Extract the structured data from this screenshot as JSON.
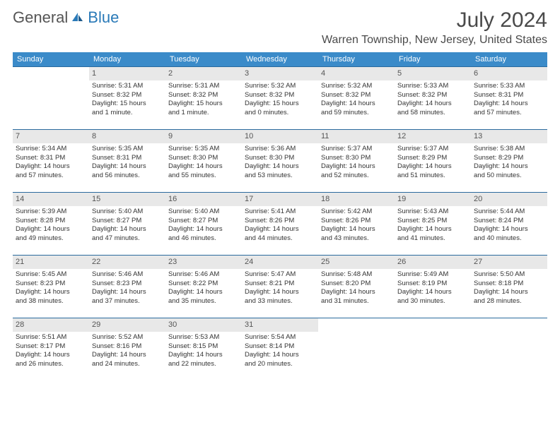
{
  "logo": {
    "text1": "General",
    "text2": "Blue"
  },
  "header": {
    "month": "July 2024",
    "location": "Warren Township, New Jersey, United States"
  },
  "colors": {
    "header_bg": "#3b8bc9",
    "header_text": "#ffffff",
    "daynum_bg": "#e8e8e8",
    "row_border": "#2a6a9e",
    "body_text": "#333333"
  },
  "dayNames": [
    "Sunday",
    "Monday",
    "Tuesday",
    "Wednesday",
    "Thursday",
    "Friday",
    "Saturday"
  ],
  "weeks": [
    [
      {
        "num": "",
        "lines": []
      },
      {
        "num": "1",
        "lines": [
          "Sunrise: 5:31 AM",
          "Sunset: 8:32 PM",
          "Daylight: 15 hours",
          "and 1 minute."
        ]
      },
      {
        "num": "2",
        "lines": [
          "Sunrise: 5:31 AM",
          "Sunset: 8:32 PM",
          "Daylight: 15 hours",
          "and 1 minute."
        ]
      },
      {
        "num": "3",
        "lines": [
          "Sunrise: 5:32 AM",
          "Sunset: 8:32 PM",
          "Daylight: 15 hours",
          "and 0 minutes."
        ]
      },
      {
        "num": "4",
        "lines": [
          "Sunrise: 5:32 AM",
          "Sunset: 8:32 PM",
          "Daylight: 14 hours",
          "and 59 minutes."
        ]
      },
      {
        "num": "5",
        "lines": [
          "Sunrise: 5:33 AM",
          "Sunset: 8:32 PM",
          "Daylight: 14 hours",
          "and 58 minutes."
        ]
      },
      {
        "num": "6",
        "lines": [
          "Sunrise: 5:33 AM",
          "Sunset: 8:31 PM",
          "Daylight: 14 hours",
          "and 57 minutes."
        ]
      }
    ],
    [
      {
        "num": "7",
        "lines": [
          "Sunrise: 5:34 AM",
          "Sunset: 8:31 PM",
          "Daylight: 14 hours",
          "and 57 minutes."
        ]
      },
      {
        "num": "8",
        "lines": [
          "Sunrise: 5:35 AM",
          "Sunset: 8:31 PM",
          "Daylight: 14 hours",
          "and 56 minutes."
        ]
      },
      {
        "num": "9",
        "lines": [
          "Sunrise: 5:35 AM",
          "Sunset: 8:30 PM",
          "Daylight: 14 hours",
          "and 55 minutes."
        ]
      },
      {
        "num": "10",
        "lines": [
          "Sunrise: 5:36 AM",
          "Sunset: 8:30 PM",
          "Daylight: 14 hours",
          "and 53 minutes."
        ]
      },
      {
        "num": "11",
        "lines": [
          "Sunrise: 5:37 AM",
          "Sunset: 8:30 PM",
          "Daylight: 14 hours",
          "and 52 minutes."
        ]
      },
      {
        "num": "12",
        "lines": [
          "Sunrise: 5:37 AM",
          "Sunset: 8:29 PM",
          "Daylight: 14 hours",
          "and 51 minutes."
        ]
      },
      {
        "num": "13",
        "lines": [
          "Sunrise: 5:38 AM",
          "Sunset: 8:29 PM",
          "Daylight: 14 hours",
          "and 50 minutes."
        ]
      }
    ],
    [
      {
        "num": "14",
        "lines": [
          "Sunrise: 5:39 AM",
          "Sunset: 8:28 PM",
          "Daylight: 14 hours",
          "and 49 minutes."
        ]
      },
      {
        "num": "15",
        "lines": [
          "Sunrise: 5:40 AM",
          "Sunset: 8:27 PM",
          "Daylight: 14 hours",
          "and 47 minutes."
        ]
      },
      {
        "num": "16",
        "lines": [
          "Sunrise: 5:40 AM",
          "Sunset: 8:27 PM",
          "Daylight: 14 hours",
          "and 46 minutes."
        ]
      },
      {
        "num": "17",
        "lines": [
          "Sunrise: 5:41 AM",
          "Sunset: 8:26 PM",
          "Daylight: 14 hours",
          "and 44 minutes."
        ]
      },
      {
        "num": "18",
        "lines": [
          "Sunrise: 5:42 AM",
          "Sunset: 8:26 PM",
          "Daylight: 14 hours",
          "and 43 minutes."
        ]
      },
      {
        "num": "19",
        "lines": [
          "Sunrise: 5:43 AM",
          "Sunset: 8:25 PM",
          "Daylight: 14 hours",
          "and 41 minutes."
        ]
      },
      {
        "num": "20",
        "lines": [
          "Sunrise: 5:44 AM",
          "Sunset: 8:24 PM",
          "Daylight: 14 hours",
          "and 40 minutes."
        ]
      }
    ],
    [
      {
        "num": "21",
        "lines": [
          "Sunrise: 5:45 AM",
          "Sunset: 8:23 PM",
          "Daylight: 14 hours",
          "and 38 minutes."
        ]
      },
      {
        "num": "22",
        "lines": [
          "Sunrise: 5:46 AM",
          "Sunset: 8:23 PM",
          "Daylight: 14 hours",
          "and 37 minutes."
        ]
      },
      {
        "num": "23",
        "lines": [
          "Sunrise: 5:46 AM",
          "Sunset: 8:22 PM",
          "Daylight: 14 hours",
          "and 35 minutes."
        ]
      },
      {
        "num": "24",
        "lines": [
          "Sunrise: 5:47 AM",
          "Sunset: 8:21 PM",
          "Daylight: 14 hours",
          "and 33 minutes."
        ]
      },
      {
        "num": "25",
        "lines": [
          "Sunrise: 5:48 AM",
          "Sunset: 8:20 PM",
          "Daylight: 14 hours",
          "and 31 minutes."
        ]
      },
      {
        "num": "26",
        "lines": [
          "Sunrise: 5:49 AM",
          "Sunset: 8:19 PM",
          "Daylight: 14 hours",
          "and 30 minutes."
        ]
      },
      {
        "num": "27",
        "lines": [
          "Sunrise: 5:50 AM",
          "Sunset: 8:18 PM",
          "Daylight: 14 hours",
          "and 28 minutes."
        ]
      }
    ],
    [
      {
        "num": "28",
        "lines": [
          "Sunrise: 5:51 AM",
          "Sunset: 8:17 PM",
          "Daylight: 14 hours",
          "and 26 minutes."
        ]
      },
      {
        "num": "29",
        "lines": [
          "Sunrise: 5:52 AM",
          "Sunset: 8:16 PM",
          "Daylight: 14 hours",
          "and 24 minutes."
        ]
      },
      {
        "num": "30",
        "lines": [
          "Sunrise: 5:53 AM",
          "Sunset: 8:15 PM",
          "Daylight: 14 hours",
          "and 22 minutes."
        ]
      },
      {
        "num": "31",
        "lines": [
          "Sunrise: 5:54 AM",
          "Sunset: 8:14 PM",
          "Daylight: 14 hours",
          "and 20 minutes."
        ]
      },
      {
        "num": "",
        "lines": []
      },
      {
        "num": "",
        "lines": []
      },
      {
        "num": "",
        "lines": []
      }
    ]
  ]
}
